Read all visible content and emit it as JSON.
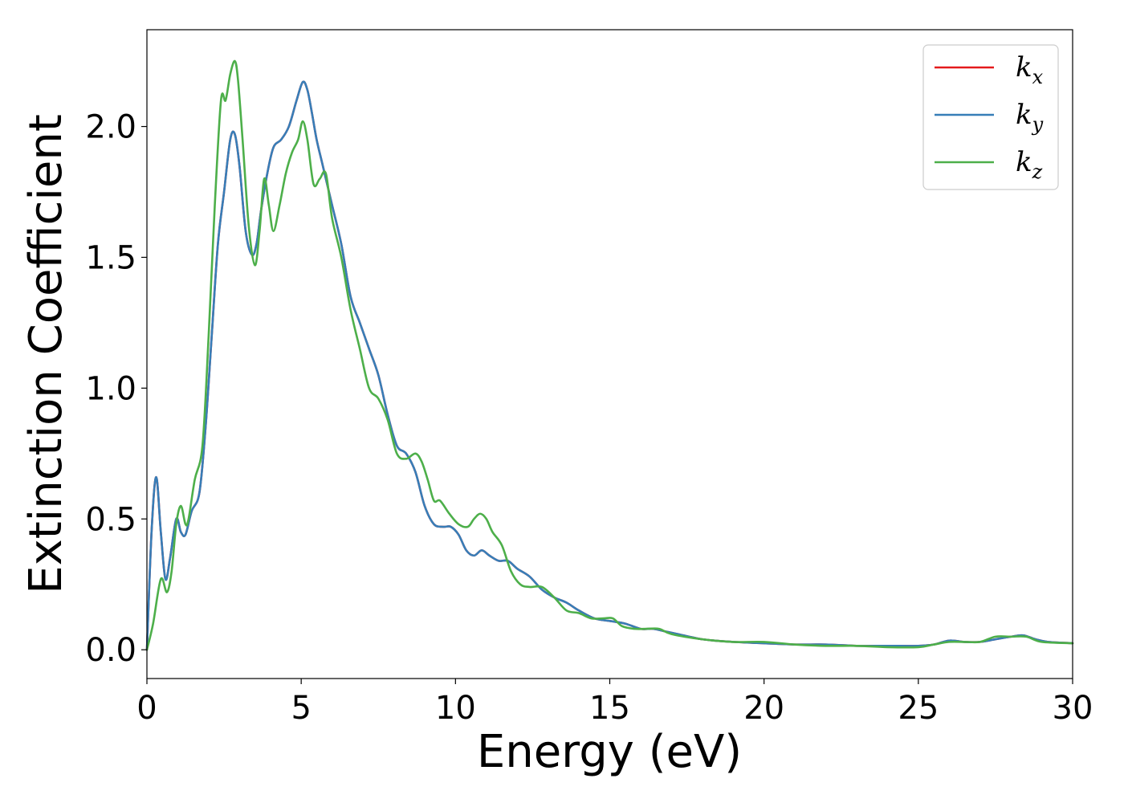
{
  "chart_data": {
    "type": "line",
    "title": "",
    "xlabel": "Energy (eV)",
    "ylabel": "Extinction Coefficient",
    "xlim": [
      0,
      30
    ],
    "ylim": [
      -0.11,
      2.37
    ],
    "xticks": [
      0,
      5,
      10,
      15,
      20,
      25,
      30
    ],
    "xtick_labels": [
      "0",
      "5",
      "10",
      "15",
      "20",
      "25",
      "30"
    ],
    "yticks": [
      0.0,
      0.5,
      1.0,
      1.5,
      2.0
    ],
    "ytick_labels": [
      "0.0",
      "0.5",
      "1.0",
      "1.5",
      "2.0"
    ],
    "grid": false,
    "legend": {
      "placement": "top-right"
    },
    "series": [
      {
        "name": "k_x",
        "label_base": "k",
        "label_sub": "x",
        "color": "#e41a1c",
        "x": [
          0,
          0.15,
          0.3,
          0.45,
          0.6,
          0.75,
          0.95,
          1.1,
          1.25,
          1.45,
          1.7,
          1.9,
          2.1,
          2.3,
          2.5,
          2.7,
          2.85,
          3.0,
          3.2,
          3.4,
          3.55,
          3.7,
          3.9,
          4.1,
          4.35,
          4.6,
          4.85,
          5.05,
          5.2,
          5.35,
          5.5,
          5.7,
          6.0,
          6.3,
          6.6,
          6.9,
          7.2,
          7.5,
          7.8,
          8.1,
          8.4,
          8.7,
          9.0,
          9.3,
          9.6,
          9.85,
          10.1,
          10.35,
          10.6,
          10.85,
          11.1,
          11.4,
          11.7,
          12.0,
          12.4,
          12.8,
          13.2,
          13.6,
          14.0,
          14.5,
          15.0,
          15.5,
          16.0,
          16.4,
          16.8,
          17.2,
          18.0,
          19.0,
          20.0,
          21.0,
          22.0,
          23.0,
          24.0,
          25.0,
          25.5,
          26.0,
          26.5,
          27.0,
          27.5,
          28.0,
          28.4,
          28.8,
          29.2,
          30.0
        ],
        "y": [
          0.0,
          0.45,
          0.66,
          0.45,
          0.27,
          0.35,
          0.5,
          0.45,
          0.44,
          0.53,
          0.6,
          0.85,
          1.2,
          1.55,
          1.75,
          1.95,
          1.97,
          1.85,
          1.6,
          1.51,
          1.55,
          1.68,
          1.82,
          1.92,
          1.95,
          2.0,
          2.1,
          2.17,
          2.14,
          2.05,
          1.95,
          1.85,
          1.7,
          1.55,
          1.35,
          1.25,
          1.15,
          1.05,
          0.9,
          0.78,
          0.75,
          0.68,
          0.55,
          0.48,
          0.47,
          0.47,
          0.44,
          0.38,
          0.36,
          0.38,
          0.36,
          0.34,
          0.34,
          0.31,
          0.28,
          0.23,
          0.2,
          0.18,
          0.15,
          0.12,
          0.11,
          0.1,
          0.08,
          0.08,
          0.07,
          0.06,
          0.04,
          0.03,
          0.025,
          0.02,
          0.02,
          0.015,
          0.015,
          0.015,
          0.02,
          0.035,
          0.03,
          0.03,
          0.04,
          0.05,
          0.055,
          0.04,
          0.03,
          0.025
        ]
      },
      {
        "name": "k_y",
        "label_base": "k",
        "label_sub": "y",
        "color": "#377eb8",
        "x": [
          0,
          0.15,
          0.3,
          0.45,
          0.6,
          0.75,
          0.95,
          1.1,
          1.25,
          1.45,
          1.7,
          1.9,
          2.1,
          2.3,
          2.5,
          2.7,
          2.85,
          3.0,
          3.2,
          3.4,
          3.55,
          3.7,
          3.9,
          4.1,
          4.35,
          4.6,
          4.85,
          5.05,
          5.2,
          5.35,
          5.5,
          5.7,
          6.0,
          6.3,
          6.6,
          6.9,
          7.2,
          7.5,
          7.8,
          8.1,
          8.4,
          8.7,
          9.0,
          9.3,
          9.6,
          9.85,
          10.1,
          10.35,
          10.6,
          10.85,
          11.1,
          11.4,
          11.7,
          12.0,
          12.4,
          12.8,
          13.2,
          13.6,
          14.0,
          14.5,
          15.0,
          15.5,
          16.0,
          16.4,
          16.8,
          17.2,
          18.0,
          19.0,
          20.0,
          21.0,
          22.0,
          23.0,
          24.0,
          25.0,
          25.5,
          26.0,
          26.5,
          27.0,
          27.5,
          28.0,
          28.4,
          28.8,
          29.2,
          30.0
        ],
        "y": [
          0.0,
          0.45,
          0.66,
          0.45,
          0.27,
          0.35,
          0.5,
          0.45,
          0.44,
          0.53,
          0.6,
          0.85,
          1.2,
          1.55,
          1.75,
          1.95,
          1.97,
          1.85,
          1.6,
          1.51,
          1.55,
          1.68,
          1.82,
          1.92,
          1.95,
          2.0,
          2.1,
          2.17,
          2.14,
          2.05,
          1.95,
          1.85,
          1.7,
          1.55,
          1.35,
          1.25,
          1.15,
          1.05,
          0.9,
          0.78,
          0.75,
          0.68,
          0.55,
          0.48,
          0.47,
          0.47,
          0.44,
          0.38,
          0.36,
          0.38,
          0.36,
          0.34,
          0.34,
          0.31,
          0.28,
          0.23,
          0.2,
          0.18,
          0.15,
          0.12,
          0.11,
          0.1,
          0.08,
          0.08,
          0.07,
          0.06,
          0.04,
          0.03,
          0.025,
          0.02,
          0.02,
          0.015,
          0.015,
          0.015,
          0.02,
          0.035,
          0.03,
          0.03,
          0.04,
          0.05,
          0.055,
          0.04,
          0.03,
          0.025
        ]
      },
      {
        "name": "k_z",
        "label_base": "k",
        "label_sub": "z",
        "color": "#4daf4a",
        "x": [
          0,
          0.2,
          0.45,
          0.65,
          0.8,
          0.95,
          1.1,
          1.25,
          1.35,
          1.55,
          1.8,
          2.0,
          2.2,
          2.4,
          2.55,
          2.7,
          2.85,
          2.95,
          3.1,
          3.3,
          3.5,
          3.65,
          3.8,
          3.95,
          4.1,
          4.3,
          4.5,
          4.7,
          4.9,
          5.05,
          5.2,
          5.4,
          5.6,
          5.8,
          6.0,
          6.3,
          6.6,
          6.9,
          7.2,
          7.5,
          7.8,
          8.1,
          8.4,
          8.7,
          8.9,
          9.1,
          9.3,
          9.5,
          9.8,
          10.1,
          10.4,
          10.6,
          10.8,
          11.0,
          11.2,
          11.5,
          11.8,
          12.1,
          12.4,
          12.8,
          13.2,
          13.6,
          14.0,
          14.4,
          14.8,
          15.1,
          15.4,
          15.8,
          16.2,
          16.6,
          17.0,
          18.0,
          19.0,
          20.0,
          21.0,
          22.0,
          23.0,
          24.0,
          25.0,
          25.5,
          26.0,
          26.5,
          27.0,
          27.5,
          28.0,
          28.5,
          29.0,
          30.0
        ],
        "y": [
          0.0,
          0.1,
          0.27,
          0.22,
          0.3,
          0.48,
          0.55,
          0.48,
          0.5,
          0.65,
          0.78,
          1.2,
          1.7,
          2.1,
          2.1,
          2.2,
          2.25,
          2.18,
          1.95,
          1.62,
          1.47,
          1.6,
          1.8,
          1.7,
          1.6,
          1.7,
          1.82,
          1.9,
          1.95,
          2.02,
          1.95,
          1.78,
          1.8,
          1.82,
          1.65,
          1.5,
          1.3,
          1.15,
          1.0,
          0.96,
          0.88,
          0.75,
          0.73,
          0.75,
          0.72,
          0.65,
          0.57,
          0.57,
          0.52,
          0.48,
          0.47,
          0.5,
          0.52,
          0.5,
          0.45,
          0.4,
          0.3,
          0.25,
          0.24,
          0.24,
          0.2,
          0.15,
          0.14,
          0.12,
          0.12,
          0.12,
          0.09,
          0.08,
          0.08,
          0.08,
          0.06,
          0.04,
          0.03,
          0.03,
          0.02,
          0.015,
          0.015,
          0.01,
          0.01,
          0.02,
          0.03,
          0.03,
          0.03,
          0.05,
          0.05,
          0.05,
          0.03,
          0.025
        ]
      }
    ]
  }
}
